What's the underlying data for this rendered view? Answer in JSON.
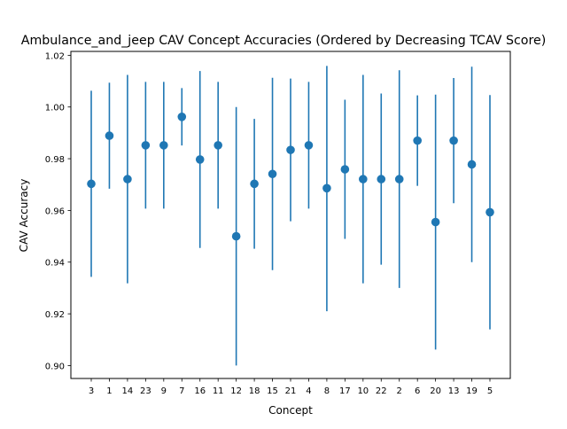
{
  "chart_data": {
    "type": "scatter",
    "title": "Ambulance_and_jeep CAV Concept Accuracies (Ordered by Decreasing TCAV Score)",
    "xlabel": "Concept",
    "ylabel": "CAV Accuracy",
    "ylim": [
      0.895,
      1.0215
    ],
    "yticks": [
      0.9,
      0.92,
      0.94,
      0.96,
      0.98,
      1.0,
      1.02
    ],
    "ytick_labels": [
      "0.90",
      "0.92",
      "0.94",
      "0.96",
      "0.98",
      "1.00",
      "1.02"
    ],
    "grid": false,
    "legend": "none",
    "marker_color": "#1f77b4",
    "categories": [
      "3",
      "1",
      "14",
      "23",
      "9",
      "7",
      "16",
      "11",
      "12",
      "18",
      "15",
      "21",
      "4",
      "8",
      "17",
      "10",
      "22",
      "2",
      "6",
      "20",
      "13",
      "19",
      "5"
    ],
    "values": [
      0.9703,
      0.9889,
      0.9721,
      0.9852,
      0.9852,
      0.9962,
      0.9797,
      0.9852,
      0.95,
      0.9703,
      0.9741,
      0.9834,
      0.9852,
      0.9686,
      0.9759,
      0.9721,
      0.9721,
      0.9721,
      0.987,
      0.9555,
      0.987,
      0.9778,
      0.9593
    ],
    "error_low": [
      0.9343,
      0.9684,
      0.9318,
      0.9607,
      0.9607,
      0.9851,
      0.9455,
      0.9607,
      0.9,
      0.9452,
      0.9369,
      0.9558,
      0.9607,
      0.921,
      0.949,
      0.9318,
      0.939,
      0.93,
      0.9695,
      0.9062,
      0.9628,
      0.94,
      0.914
    ],
    "error_high": [
      1.0063,
      1.0094,
      1.0124,
      1.0097,
      1.0097,
      1.0073,
      1.0139,
      1.0097,
      1.0,
      0.9954,
      1.0113,
      1.011,
      1.0097,
      1.0159,
      1.0028,
      1.0124,
      1.0052,
      1.0142,
      1.0045,
      1.0048,
      1.0112,
      1.0156,
      1.0046
    ]
  }
}
